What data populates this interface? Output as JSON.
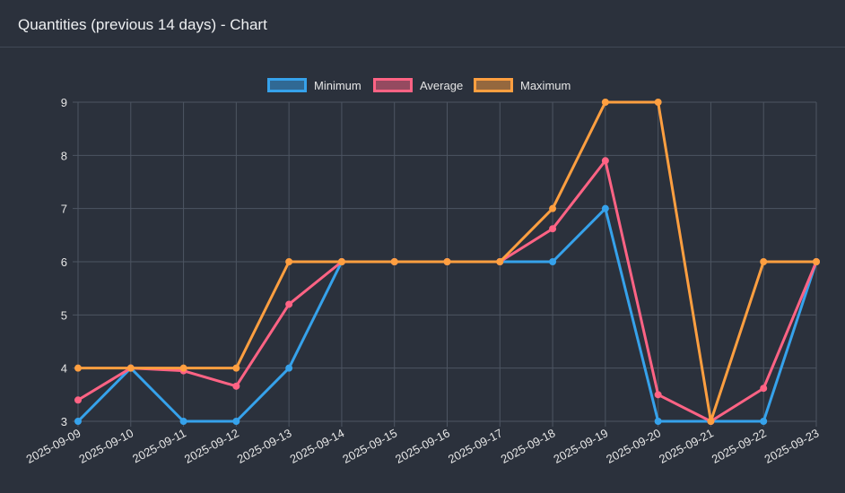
{
  "header": {
    "title": "Quantities (previous 14 days) - Chart"
  },
  "chart_data": {
    "type": "line",
    "title": "",
    "xlabel": "",
    "ylabel": "",
    "categories": [
      "2025-09-09",
      "2025-09-10",
      "2025-09-11",
      "2025-09-12",
      "2025-09-13",
      "2025-09-14",
      "2025-09-15",
      "2025-09-16",
      "2025-09-17",
      "2025-09-18",
      "2025-09-19",
      "2025-09-20",
      "2025-09-21",
      "2025-09-22",
      "2025-09-23"
    ],
    "ylim": [
      3,
      9
    ],
    "yticks": [
      3,
      4,
      5,
      6,
      7,
      8,
      9
    ],
    "grid": true,
    "legend_position": "top-center",
    "series": [
      {
        "name": "Minimum",
        "color": "#36a2eb",
        "values": [
          3,
          4,
          3,
          3,
          4,
          6,
          6,
          6,
          6,
          6,
          7,
          3,
          3,
          3,
          6
        ]
      },
      {
        "name": "Average",
        "color": "#ff6384",
        "values": [
          3.4,
          4,
          3.95,
          3.66,
          5.2,
          6,
          6,
          6,
          6,
          6.62,
          7.9,
          3.5,
          3,
          3.62,
          6
        ]
      },
      {
        "name": "Maximum",
        "color": "#ff9f40",
        "values": [
          4,
          4,
          4,
          4,
          6,
          6,
          6,
          6,
          6,
          7,
          9,
          9,
          3,
          6,
          6
        ]
      }
    ]
  }
}
